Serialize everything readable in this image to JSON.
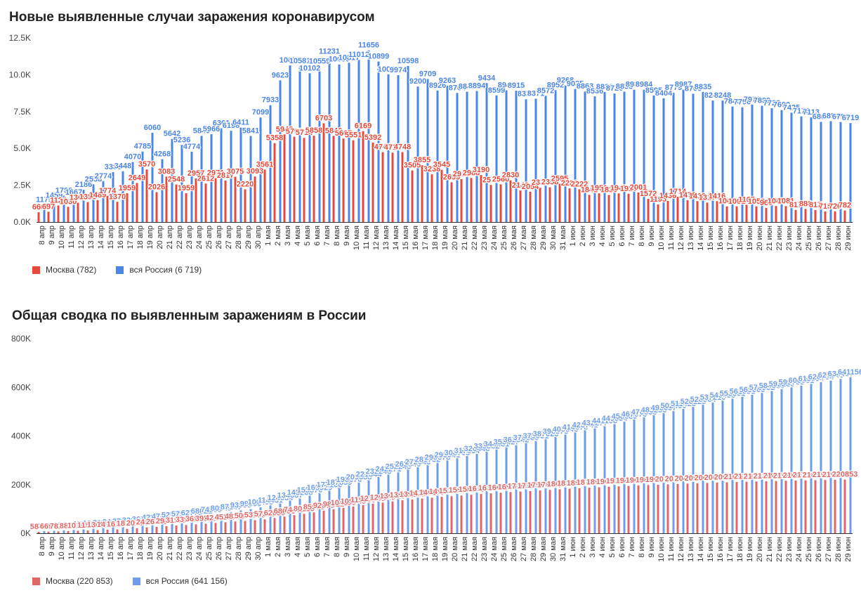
{
  "dates": [
    "8 апр",
    "9 апр",
    "10 апр",
    "11 апр",
    "12 апр",
    "13 апр",
    "14 апр",
    "15 апр",
    "16 апр",
    "17 апр",
    "18 апр",
    "19 апр",
    "20 апр",
    "21 апр",
    "22 апр",
    "23 апр",
    "24 апр",
    "25 апр",
    "26 апр",
    "27 апр",
    "28 апр",
    "29 апр",
    "30 апр",
    "1 мая",
    "2 мая",
    "3 мая",
    "4 мая",
    "5 мая",
    "6 мая",
    "7 мая",
    "8 мая",
    "9 мая",
    "10 мая",
    "11 мая",
    "12 мая",
    "13 мая",
    "14 мая",
    "15 мая",
    "16 мая",
    "17 мая",
    "18 мая",
    "19 мая",
    "20 мая",
    "21 мая",
    "22 мая",
    "23 мая",
    "24 мая",
    "25 мая",
    "26 мая",
    "27 мая",
    "28 мая",
    "29 мая",
    "30 мая",
    "31 мая",
    "1 июн",
    "2 июн",
    "3 июн",
    "4 июн",
    "5 июн",
    "6 июн",
    "7 июн",
    "8 июн",
    "9 июн",
    "10 июн",
    "11 июн",
    "12 июн",
    "13 июн",
    "14 июн",
    "15 июн",
    "16 июн",
    "17 июн",
    "18 июн",
    "19 июн",
    "20 июн",
    "21 июн",
    "22 июн",
    "23 июн",
    "24 июн",
    "25 июн",
    "26 июн",
    "27 июн",
    "28 июн",
    "29 июн"
  ],
  "chart_data": [
    {
      "type": "bar",
      "title": "Новые выявленные случаи заражения коронавирусом",
      "ylim": [
        0,
        12500
      ],
      "yticks": [
        0,
        2500,
        5000,
        7500,
        10000,
        12500
      ],
      "ytick_labels": [
        "0.0K",
        "2.5K",
        "5.0K",
        "7.5K",
        "10.0K",
        "12.5K"
      ],
      "grid": false,
      "legend_position": "bottom-left",
      "series": [
        {
          "name": "Москва (782)",
          "color": "#e8483a",
          "values": [
            660,
            697,
            1124,
            1030,
            1306,
            1355,
            1489,
            1774,
            1370,
            1959,
            2649,
            3570,
            2026,
            3083,
            2548,
            1959,
            2957,
            2612,
            2971,
            2817,
            3075,
            2220,
            3093,
            3561,
            5358,
            5948,
            5795,
            5714,
            5858,
            6703,
            5846,
            5667,
            5551,
            6169,
            5392,
            4747,
            4712,
            4748,
            3505,
            3855,
            3238,
            3545,
            2699,
            2913,
            2988,
            3190,
            2516,
            2560,
            2830,
            2140,
            2054,
            2332,
            2358,
            2595,
            2286,
            2222,
            1842,
            1951,
            1835,
            1947,
            1920,
            2001,
            1572,
            1195,
            1436,
            1714,
            1478,
            1418,
            1317,
            1416,
            1064,
            1061,
            1167,
            1059,
            963,
            1085,
            1081,
            817,
            888,
            817,
            715,
            726,
            782
          ],
          "labels": [
            "660",
            "697",
            "1124",
            "1030",
            "1306",
            "1355",
            "1489",
            "1774",
            "1370",
            "1959",
            "2649",
            "3570",
            "2026",
            "3083",
            "2548",
            "1959",
            "2957",
            "2612",
            "2971",
            "2817",
            "3075",
            "2220",
            "3093",
            "3561",
            "5358",
            "5948",
            "5795",
            "5714",
            "5858",
            "6703",
            "5846",
            "5667",
            "5551",
            "6169",
            "5392",
            "4747",
            "4712",
            "4748",
            "3505",
            "3855",
            "3238",
            "3545",
            "2699",
            "2913",
            "2988",
            "3190",
            "2516",
            "2560",
            "2830",
            "2140",
            "2054",
            "2332",
            "2358",
            "2595",
            "2286",
            "2222",
            "1842",
            "1951",
            "1835",
            "1947",
            "1920",
            "2001",
            "1572",
            "1195",
            "1436",
            "1714",
            "1478",
            "1418",
            "1317",
            "1416",
            "1064",
            "1061",
            "1167",
            "1059",
            "963",
            "1085",
            "1081",
            "817",
            "888",
            "817",
            "715",
            "726",
            "782"
          ]
        },
        {
          "name": "вся Россия (6 719)",
          "color": "#4a86e8",
          "values": [
            1175,
            1459,
            1786,
            1667,
            2186,
            2558,
            2774,
            3388,
            3448,
            4070,
            4785,
            6060,
            4268,
            5642,
            5236,
            4774,
            5849,
            5966,
            6361,
            6198,
            6411,
            5841,
            7099,
            7933,
            9623,
            10633,
            10581,
            10102,
            10559,
            11231,
            10699,
            10817,
            11012,
            11656,
            10899,
            10028,
            9974,
            10598,
            9200,
            9709,
            8926,
            9263,
            8764,
            8849,
            8894,
            9434,
            8599,
            8946,
            8915,
            8338,
            8371,
            8572,
            8952,
            9268,
            9035,
            8863,
            8536,
            8831,
            8726,
            8855,
            8985,
            8984,
            8595,
            8404,
            8779,
            8987,
            8706,
            8835,
            8248,
            8248,
            7843,
            7790,
            7972,
            7889,
            7728,
            7600,
            7425,
            7176,
            7113,
            6800,
            6852,
            6791,
            6719
          ],
          "labels": [
            "1175",
            "1459",
            "1786",
            "1667",
            "2186",
            "2558",
            "2774",
            "3388",
            "3448",
            "4070",
            "4785",
            "6060",
            "4268",
            "5642",
            "5236",
            "4774",
            "5849",
            "5966",
            "6361",
            "6198",
            "6411",
            "5841",
            "7099",
            "7933",
            "9623",
            "10633",
            "10581",
            "10102",
            "10559",
            "11231",
            "10699",
            "10817",
            "11012",
            "11656",
            "10899",
            "10028",
            "9974",
            "10598",
            "9200",
            "9709",
            "8926",
            "9263",
            "8764",
            "8849",
            "8894",
            "9434",
            "8599",
            "8946",
            "8915",
            "8338",
            "8371",
            "8572",
            "8952",
            "9268",
            "9035",
            "8863",
            "8536",
            "8831",
            "8726",
            "8855",
            "8985",
            "8984",
            "8595",
            "8404",
            "8779",
            "8987",
            "8706",
            "8835",
            "8248",
            "8248",
            "7843",
            "7790",
            "7972",
            "7889",
            "7728",
            "7600",
            "7425",
            "7176",
            "7113",
            "6800",
            "6852",
            "6791",
            "6719"
          ]
        }
      ]
    },
    {
      "type": "bar",
      "title": "Общая сводка по выявленным заражениям в России",
      "ylim": [
        0,
        800000
      ],
      "yticks": [
        0,
        200000,
        400000,
        600000,
        800000
      ],
      "ytick_labels": [
        "0K",
        "200K",
        "400K",
        "600K",
        "800K"
      ],
      "grid": false,
      "legend_position": "bottom-left",
      "series": [
        {
          "name": "Москва (220 853)",
          "color": "#e06666",
          "values": [
            5841,
            6698,
            7822,
            8852,
            10158,
            11513,
            13002,
            14776,
            16146,
            18105,
            20754,
            24324,
            26350,
            29433,
            31981,
            33940,
            36897,
            39509,
            42480,
            45297,
            48372,
            50646,
            53739,
            57300,
            62658,
            68606,
            74401,
            80115,
            85973,
            92676,
            98522,
            104189,
            109740,
            115909,
            121301,
            126048,
            130760,
            135508,
            139013,
            142868,
            146106,
            149651,
            152350,
            155263,
            158251,
            161441,
            163957,
            166517,
            169347,
            171487,
            173541,
            175873,
            178231,
            180826,
            183112,
            185334,
            187176,
            189127,
            190962,
            192909,
            194829,
            196830,
            198402,
            199597,
            201033,
            202747,
            204225,
            205643,
            206960,
            208376,
            209440,
            210501,
            211668,
            212727,
            213690,
            214775,
            215856,
            216673,
            217561,
            218378,
            219093,
            219819,
            220853
          ],
          "labels": [
            "5841",
            "6698",
            "7822",
            "8852",
            "10158",
            "11513",
            "13002",
            "14776",
            "16146",
            "18105",
            "20754",
            "24324",
            "26350",
            "29433",
            "31981",
            "33940",
            "36897",
            "39509",
            "42480",
            "45297",
            "48372",
            "50646",
            "53739",
            "57300",
            "62658",
            "68606",
            "74401",
            "80115",
            "85973",
            "92676",
            "98522",
            "104189",
            "109740",
            "115909",
            "121301",
            "126048",
            "130760",
            "135508",
            "139013",
            "142868",
            "146106",
            "149651",
            "152350",
            "155263",
            "158251",
            "161441",
            "163957",
            "166517",
            "169347",
            "171487",
            "173541",
            "175873",
            "178231",
            "180826",
            "183112",
            "185334",
            "187176",
            "189127",
            "190962",
            "192909",
            "194829",
            "196830",
            "198402",
            "199597",
            "201033",
            "202747",
            "204225",
            "205643",
            "206960",
            "208376",
            "209440",
            "210501",
            "211668",
            "212727",
            "213690",
            "214775",
            "215856",
            "216673",
            "217561",
            "218378",
            "219093",
            "219819",
            "220853"
          ]
        },
        {
          "name": "вся Россия (641 156)",
          "color": "#6d9eeb",
          "values": [
            8672,
            10131,
            11917,
            13584,
            15770,
            18328,
            21102,
            24490,
            27938,
            32008,
            36793,
            42853,
            47121,
            52763,
            57999,
            62773,
            68622,
            74588,
            80949,
            87147,
            93558,
            99399,
            106498,
            114431,
            124054,
            134687,
            145268,
            155370,
            165929,
            177160,
            187859,
            198676,
            209688,
            221344,
            232243,
            242271,
            252245,
            262843,
            272043,
            281752,
            290678,
            299941,
            308705,
            317554,
            326448,
            335882,
            344481,
            353427,
            362342,
            370680,
            379051,
            387623,
            396575,
            405843,
            414878,
            423741,
            432277,
            441108,
            449834,
            458689,
            467673,
            476658,
            485253,
            493657,
            502436,
            511423,
            520129,
            528964,
            537210,
            545458,
            553301,
            561091,
            569063,
            576952,
            584680,
            592280,
            599705,
            606881,
            613994,
            620794,
            627646,
            634437,
            641156
          ],
          "labels": [
            "8672",
            "10131",
            "11917",
            "13584",
            "15770",
            "18328",
            "21102",
            "24490",
            "27938",
            "32008",
            "36793",
            "42853",
            "47121",
            "52763",
            "57999",
            "62773",
            "68622",
            "74588",
            "80949",
            "87147",
            "93558",
            "99399",
            "106498",
            "114431",
            "124054",
            "134687",
            "145268",
            "155370",
            "165929",
            "177160",
            "187859",
            "198676",
            "209688",
            "221344",
            "232243",
            "242271",
            "252245",
            "262843",
            "272043",
            "281752",
            "290678",
            "299941",
            "308705",
            "317554",
            "326448",
            "335882",
            "344481",
            "353427",
            "362342",
            "370680",
            "379051",
            "387623",
            "396575",
            "405843",
            "414878",
            "423741",
            "432277",
            "441108",
            "449834",
            "458689",
            "467673",
            "476658",
            "485253",
            "493657",
            "502436",
            "511423",
            "520129",
            "528964",
            "537210",
            "545458",
            "553301",
            "561091",
            "569063",
            "576952",
            "584680",
            "592280",
            "599705",
            "606881",
            "613994",
            "620794",
            "627646",
            "634437",
            "641156"
          ]
        }
      ]
    }
  ]
}
